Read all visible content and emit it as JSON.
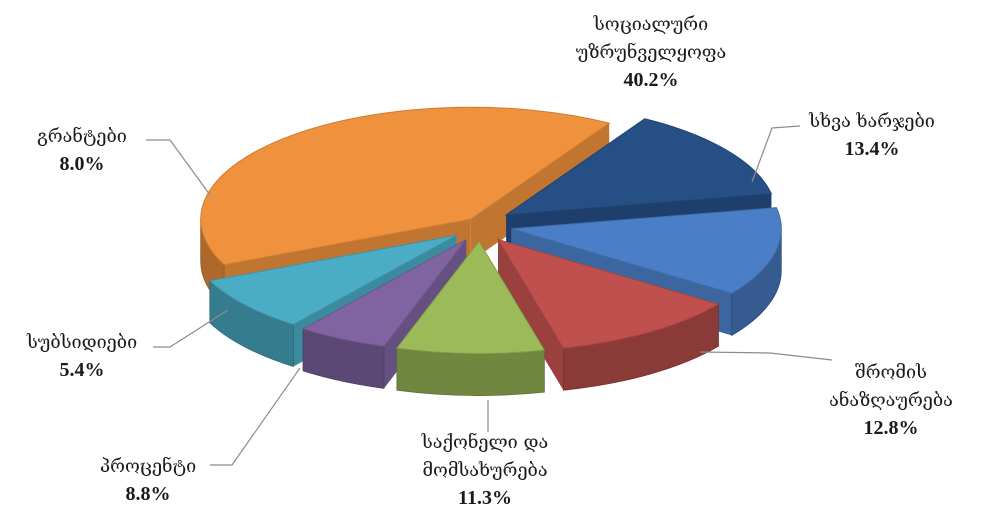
{
  "chart_data": {
    "type": "pie",
    "title": "",
    "slices": [
      {
        "label_lines": [
          "სოციალური",
          "უზრუნველყოფა"
        ],
        "value": "40.2%",
        "percent": 40.2,
        "color": "#F0923D"
      },
      {
        "label_lines": [
          "სხვა ხარჯები"
        ],
        "value": "13.4%",
        "percent": 13.4,
        "color": "#264F86"
      },
      {
        "label_lines": [
          "შრომის",
          "ანაზღაურება"
        ],
        "value": "12.8%",
        "percent": 12.8,
        "color": "#4A7FC8"
      },
      {
        "label_lines": [
          "საქონელი და",
          "მომსახურება"
        ],
        "value": "11.3%",
        "percent": 11.3,
        "color": "#C0504D"
      },
      {
        "label_lines": [
          "პროცენტი"
        ],
        "value": "8.8%",
        "percent": 8.8,
        "color": "#9BBB59"
      },
      {
        "label_lines": [
          "სუბსიდიები"
        ],
        "value": "5.4%",
        "percent": 5.4,
        "color": "#8064A2"
      },
      {
        "label_lines": [
          "გრანტები"
        ],
        "value": "8.0%",
        "percent": 8.0,
        "color": "#4BACC6"
      }
    ],
    "exploded": true,
    "three_d": true,
    "legend": "none"
  }
}
